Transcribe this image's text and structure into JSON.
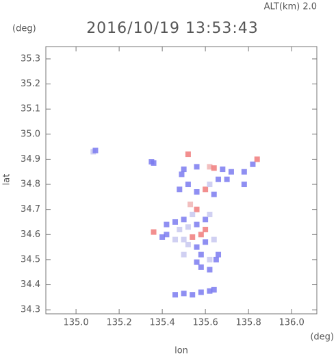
{
  "chart_data": {
    "type": "scatter",
    "title": "2016/10/19 13:53:43",
    "annotation": "ALT(km) 2.0",
    "y_unit": "(deg)",
    "x_unit": "(deg)",
    "x_label": "lon",
    "y_label": "lat",
    "xlim": [
      134.86,
      136.117
    ],
    "ylim": [
      34.284,
      35.349
    ],
    "xticks": [
      {
        "value": 135,
        "label": "135.0"
      },
      135.2,
      135.4,
      135.6,
      135.8,
      {
        "value": 136,
        "label": "136.0"
      }
    ],
    "yticks": [
      34.3,
      34.4,
      34.5,
      34.6,
      34.7,
      34.8,
      34.9,
      {
        "value": 35,
        "label": "35.0"
      },
      35.1,
      35.2,
      35.3
    ],
    "x": [
      135.08,
      135.09,
      135.35,
      135.36,
      135.52,
      135.56,
      135.5,
      135.49,
      135.52,
      135.48,
      135.62,
      135.64,
      135.68,
      135.72,
      135.78,
      135.82,
      135.84,
      135.78,
      135.7,
      135.66,
      135.6,
      135.62,
      135.56,
      135.64,
      135.53,
      135.56,
      135.54,
      135.5,
      135.46,
      135.42,
      135.48,
      135.52,
      135.56,
      135.6,
      135.62,
      135.6,
      135.58,
      135.54,
      135.5,
      135.46,
      135.42,
      135.36,
      135.4,
      135.52,
      135.56,
      135.6,
      135.64,
      135.66,
      135.62,
      135.58,
      135.56,
      135.58,
      135.62,
      135.65,
      135.5,
      135.46,
      135.5,
      135.54,
      135.58,
      135.62,
      135.64
    ],
    "values": [
      34.93,
      34.935,
      34.89,
      34.885,
      34.92,
      34.87,
      34.86,
      34.84,
      34.8,
      34.78,
      34.87,
      34.865,
      34.86,
      34.85,
      34.85,
      34.88,
      34.9,
      34.8,
      34.82,
      34.82,
      34.78,
      34.8,
      34.77,
      34.76,
      34.72,
      34.7,
      34.68,
      34.66,
      34.65,
      34.64,
      34.62,
      34.63,
      34.64,
      34.66,
      34.68,
      34.62,
      34.6,
      34.59,
      34.58,
      34.58,
      34.6,
      34.61,
      34.59,
      34.56,
      34.55,
      34.57,
      34.58,
      34.52,
      34.5,
      34.52,
      34.49,
      34.47,
      34.46,
      34.5,
      34.52,
      34.36,
      34.365,
      34.36,
      34.37,
      34.375,
      34.38
    ],
    "colors": [
      "#c8c8f0",
      "#7b7bf0",
      "#7b7bf0",
      "#7b7bf0",
      "#f07b7b",
      "#7b7bf0",
      "#7b7bf0",
      "#7b7bf0",
      "#7b7bf0",
      "#7b7bf0",
      "#f0b4b4",
      "#f07b7b",
      "#7b7bf0",
      "#7b7bf0",
      "#7b7bf0",
      "#7b7bf0",
      "#f07b7b",
      "#7b7bf0",
      "#7b7bf0",
      "#7b7bf0",
      "#f07b7b",
      "#c8c8f0",
      "#7b7bf0",
      "#7b7bf0",
      "#f0b4b4",
      "#f07b7b",
      "#c8c8f0",
      "#7b7bf0",
      "#7b7bf0",
      "#7b7bf0",
      "#c8c8f0",
      "#c8c8f0",
      "#7b7bf0",
      "#7b7bf0",
      "#c8c8f0",
      "#f07b7b",
      "#f07b7b",
      "#f07b7b",
      "#c8c8f0",
      "#c8c8f0",
      "#7b7bf0",
      "#f07b7b",
      "#7b7bf0",
      "#c8c8f0",
      "#7b7bf0",
      "#7b7bf0",
      "#c8c8f0",
      "#7b7bf0",
      "#c8c8f0",
      "#7b7bf0",
      "#7b7bf0",
      "#7b7bf0",
      "#7b7bf0",
      "#7b7bf0",
      "#c8c8f0",
      "#7b7bf0",
      "#7b7bf0",
      "#7b7bf0",
      "#7b7bf0",
      "#7b7bf0",
      "#7b7bf0"
    ]
  }
}
